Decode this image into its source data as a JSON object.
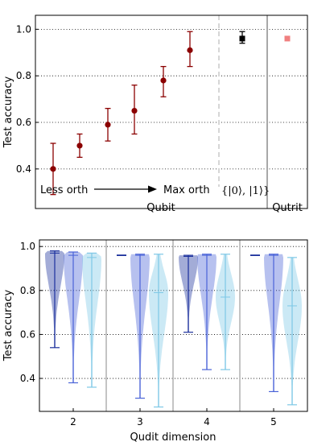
{
  "chart_data": [
    {
      "type": "scatter",
      "ylabel": "Test accuracy",
      "ylim": [
        0.23,
        1.06
      ],
      "yticks": [
        0.4,
        0.6,
        0.8,
        1.0
      ],
      "ytick_labels": [
        "0.4",
        "0.6",
        "0.8",
        "1.0"
      ],
      "grid": true,
      "groups": [
        {
          "label": "Qubit",
          "color": "#8b0000",
          "marker": "circle",
          "points": [
            {
              "y": 0.4,
              "low": 0.29,
              "high": 0.51
            },
            {
              "y": 0.5,
              "low": 0.45,
              "high": 0.55
            },
            {
              "y": 0.59,
              "low": 0.52,
              "high": 0.66
            },
            {
              "y": 0.65,
              "low": 0.55,
              "high": 0.76
            },
            {
              "y": 0.78,
              "low": 0.71,
              "high": 0.84
            },
            {
              "y": 0.91,
              "low": 0.84,
              "high": 0.99
            }
          ]
        },
        {
          "label": "{|0⟩,|1⟩}",
          "color": "#000000",
          "marker": "square",
          "points": [
            {
              "y": 0.96,
              "low": 0.94,
              "high": 0.99
            }
          ]
        },
        {
          "label": "Qutrit",
          "color": "#f08080",
          "marker": "square",
          "points": [
            {
              "y": 0.96,
              "low": 0.96,
              "high": 0.96
            }
          ]
        }
      ],
      "annotations": {
        "left": "Less orth",
        "right": "Max orth"
      },
      "xlabels": [
        "Qubit",
        "Qutrit"
      ],
      "basis_label": "{|0⟩, |1⟩}"
    },
    {
      "type": "violin",
      "xlabel": "Qudit dimension",
      "ylabel": "Test accuracy",
      "ylim": [
        0.25,
        1.03
      ],
      "yticks": [
        0.4,
        0.6,
        0.8,
        1.0
      ],
      "ytick_labels": [
        "0.4",
        "0.6",
        "0.8",
        "1.0"
      ],
      "categories": [
        "2",
        "3",
        "4",
        "5"
      ],
      "colors": [
        "#1a2f9c",
        "#4a63d8",
        "#7ec8e6"
      ],
      "violins": [
        [
          {
            "min": 0.54,
            "max": 0.98,
            "median": 0.97
          },
          {
            "min": 0.38,
            "max": 0.975,
            "median": 0.96
          },
          {
            "min": 0.36,
            "max": 0.97,
            "median": 0.95
          }
        ],
        [
          {
            "min": 0.96,
            "max": 0.96,
            "median": 0.96
          },
          {
            "min": 0.31,
            "max": 0.965,
            "median": 0.96
          },
          {
            "min": 0.27,
            "max": 0.965,
            "median": 0.79
          }
        ],
        [
          {
            "min": 0.61,
            "max": 0.96,
            "median": 0.955
          },
          {
            "min": 0.44,
            "max": 0.965,
            "median": 0.96
          },
          {
            "min": 0.44,
            "max": 0.965,
            "median": 0.77
          }
        ],
        [
          {
            "min": 0.96,
            "max": 0.96,
            "median": 0.96
          },
          {
            "min": 0.34,
            "max": 0.965,
            "median": 0.96
          },
          {
            "min": 0.28,
            "max": 0.95,
            "median": 0.73
          }
        ]
      ]
    }
  ]
}
